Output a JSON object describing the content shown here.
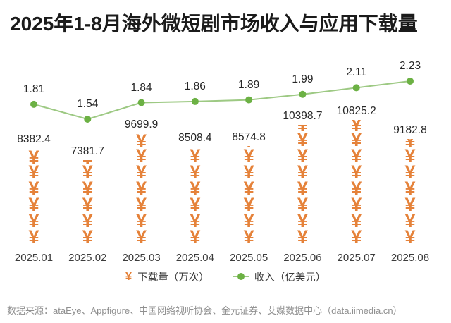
{
  "title": "2025年1-8月海外微短剧市场收入与应用下载量",
  "colors": {
    "bar": "#E5823A",
    "line": "#9DC983",
    "marker": "#6CB144",
    "axis": "#E7E7E7",
    "value_label": "#262626",
    "source_text": "#8F8F8F"
  },
  "chart_data": {
    "type": "bar",
    "subtype": "pictogram-bar-with-line",
    "categories": [
      "2025.01",
      "2025.02",
      "2025.03",
      "2025.04",
      "2025.05",
      "2025.06",
      "2025.07",
      "2025.08"
    ],
    "series": [
      {
        "name": "下载量（万次）",
        "type": "pictogram-bar",
        "symbol": "¥",
        "symbol_unit": 1400,
        "color": "#E5823A",
        "values": [
          8382.4,
          7381.7,
          9699.9,
          8508.4,
          8574.8,
          10398.7,
          10825.2,
          9182.8
        ]
      },
      {
        "name": "收入（亿美元）",
        "type": "line",
        "color": "#9DC983",
        "marker_color": "#6CB144",
        "values": [
          1.81,
          1.54,
          1.84,
          1.86,
          1.89,
          1.99,
          2.11,
          2.23
        ]
      }
    ],
    "value_labels": true,
    "grid": false,
    "legend_position": "bottom",
    "xlabel": "",
    "ylabel": ""
  },
  "legend": {
    "bar_symbol": "¥",
    "bar_label": "下载量（万次）",
    "line_label": "收入（亿美元）"
  },
  "source": "数据来源：ataEye、Appfigure、中国网络视听协会、金元证券、艾媒数据中心（data.iimedia.cn）"
}
